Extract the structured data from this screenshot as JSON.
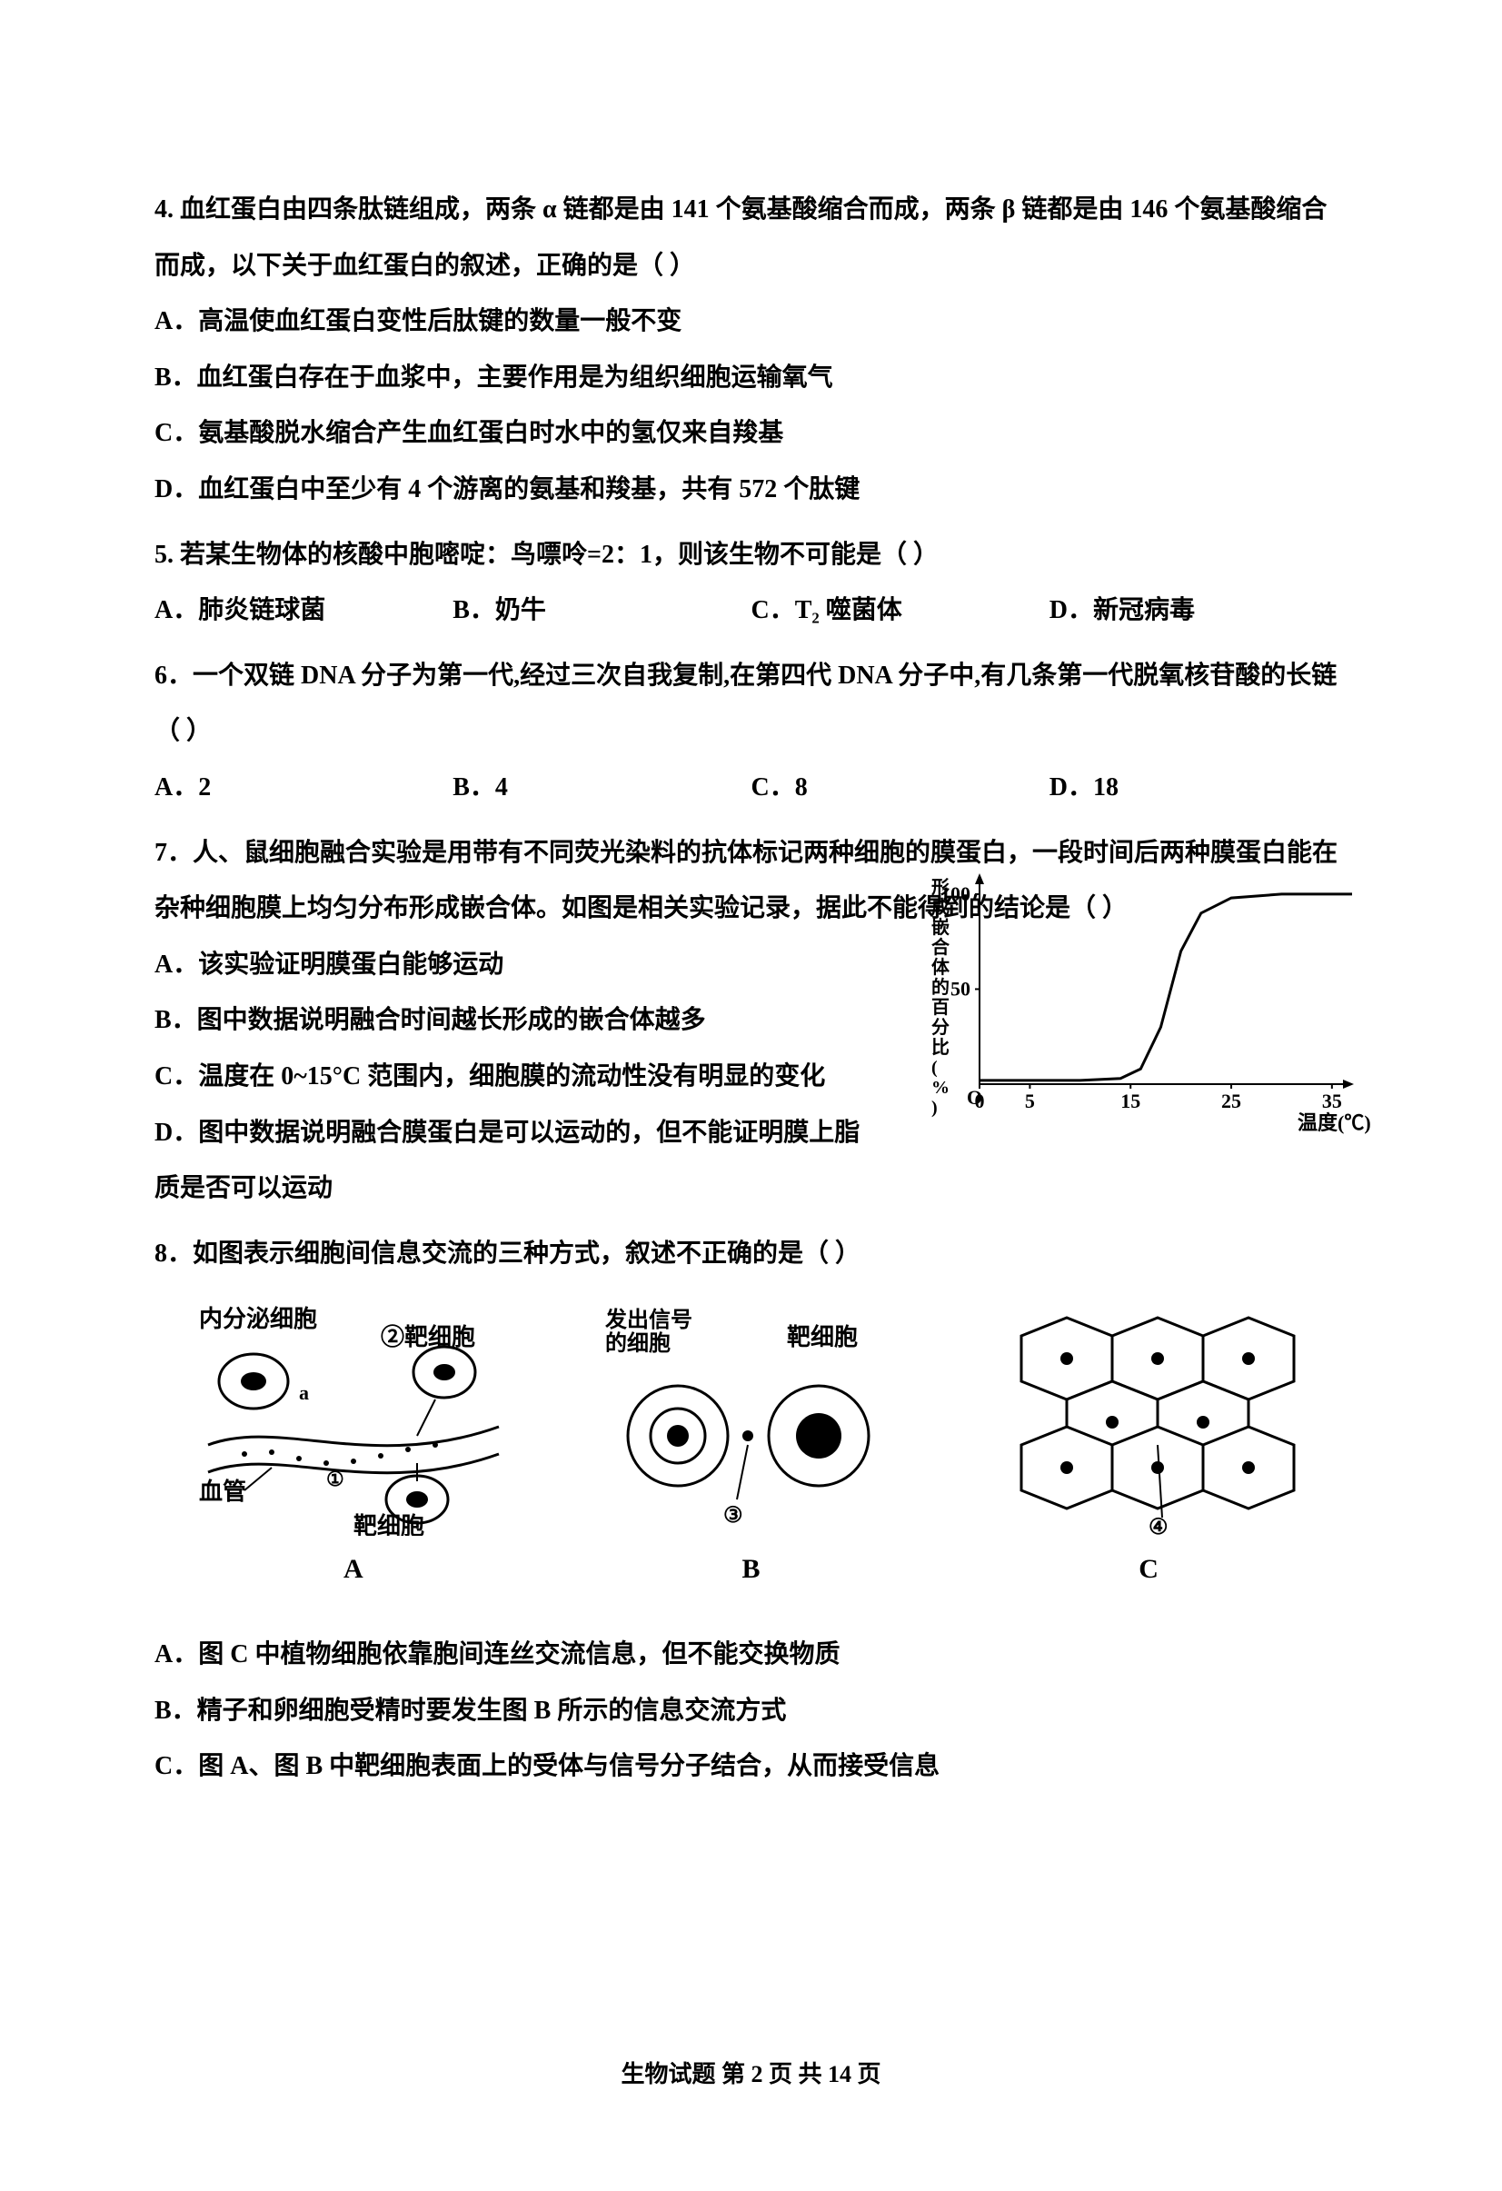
{
  "q4": {
    "stem": "4.  血红蛋白由四条肽链组成，两条 α 链都是由 141 个氨基酸缩合而成，两条 β 链都是由 146 个氨基酸缩合而成，以下关于血红蛋白的叙述，正确的是（      ）",
    "A": "A．高温使血红蛋白变性后肽键的数量一般不变",
    "B": "B．血红蛋白存在于血浆中，主要作用是为组织细胞运输氧气",
    "C": "C．氨基酸脱水缩合产生血红蛋白时水中的氢仅来自羧基",
    "D": "D．血红蛋白中至少有 4 个游离的氨基和羧基，共有 572 个肽键"
  },
  "q5": {
    "stem": "5.  若某生物体的核酸中胞嘧啶：鸟嘌呤=2：1，则该生物不可能是（        ）",
    "A": "A．肺炎链球菌",
    "B": "B．奶牛",
    "C": "C．T₂ 噬菌体",
    "D": "D．新冠病毒"
  },
  "q6": {
    "stem": "6．一个双链 DNA 分子为第一代,经过三次自我复制,在第四代 DNA 分子中,有几条第一代脱氧核苷酸的长链（      ）",
    "A": "A．2",
    "B": "B．4",
    "C": "C．8",
    "D": "D．18"
  },
  "q7": {
    "stem": "7．人、鼠细胞融合实验是用带有不同荧光染料的抗体标记两种细胞的膜蛋白，一段时间后两种膜蛋白能在杂种细胞膜上均匀分布形成嵌合体。如图是相关实验记录，据此不能得到的结论是（ ）",
    "A": "A．该实验证明膜蛋白能够运动",
    "B": "B．图中数据说明融合时间越长形成的嵌合体越多",
    "C": "C．温度在 0~15°C 范围内，细胞膜的流动性没有明显的变化",
    "D": "D．图中数据说明融合膜蛋白是可以运动的，但不能证明膜上脂质是否可以运动",
    "chart": {
      "type": "line",
      "x_ticks": [
        "0",
        "5",
        "15",
        "25",
        "35"
      ],
      "y_ticks": [
        "50",
        "100"
      ],
      "x_label": "温度(℃)",
      "y_label": "形成嵌合体的百分比(%)",
      "curve": [
        [
          0,
          2
        ],
        [
          5,
          2
        ],
        [
          10,
          2
        ],
        [
          14,
          3
        ],
        [
          16,
          8
        ],
        [
          18,
          30
        ],
        [
          20,
          70
        ],
        [
          22,
          90
        ],
        [
          25,
          98
        ],
        [
          30,
          100
        ],
        [
          35,
          100
        ],
        [
          37,
          100
        ]
      ],
      "axis_color": "#000000",
      "curve_color": "#000000",
      "bg_color": "#ffffff",
      "xlim": [
        0,
        37
      ],
      "ylim": [
        0,
        110
      ],
      "line_width": 3,
      "font_size": 22
    }
  },
  "q8": {
    "stem": "8．如图表示细胞间信息交流的三种方式，叙述不正确的是（        ）",
    "diagrams": {
      "A": {
        "label": "A",
        "text_top_left": "内分泌细胞",
        "text_target_top": "②靶细胞",
        "text_vessel": "血管",
        "text_marker1": "①",
        "text_a": "a",
        "text_target_bottom": "靶细胞"
      },
      "B": {
        "label": "B",
        "text_signal_cell": "发出信号\n的细胞",
        "text_target": "靶细胞",
        "text_marker3": "③"
      },
      "C": {
        "label": "C",
        "text_marker4": "④"
      }
    },
    "A": "A．图 C 中植物细胞依靠胞间连丝交流信息，但不能交换物质",
    "B": "B．精子和卵细胞受精时要发生图 B 所示的信息交流方式",
    "C": "C．图 A、图 B 中靶细胞表面上的受体与信号分子结合，从而接受信息"
  },
  "footer": "生物试题    第 2 页 共 14 页"
}
